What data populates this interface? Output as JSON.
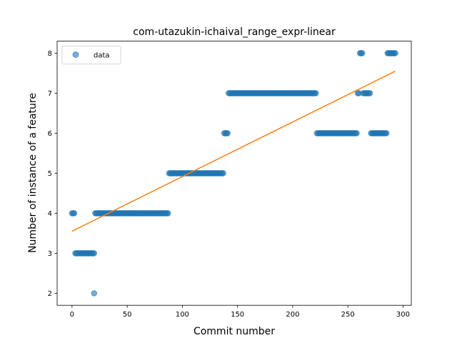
{
  "chart_data": {
    "type": "scatter",
    "title": "com-utazukin-ichaival_range_expr-linear",
    "xlabel": "Commit number",
    "ylabel": "Number of instance of a feature",
    "xlim": [
      -13.5,
      307.5
    ],
    "ylim": [
      1.7,
      8.3
    ],
    "xticks": [
      0,
      50,
      100,
      150,
      200,
      250,
      300
    ],
    "yticks": [
      2,
      3,
      4,
      5,
      6,
      7,
      8
    ],
    "grid": false,
    "legend": {
      "position": "top-left",
      "entries": [
        "data"
      ]
    },
    "colors": {
      "scatter": "#1f77b4",
      "fit": "#ff7f0e"
    },
    "segments": [
      {
        "x_start": 0,
        "x_end": 2,
        "y": 4
      },
      {
        "x_start": 3,
        "x_end": 20,
        "y": 3
      },
      {
        "x_start": 20,
        "x_end": 20,
        "y": 2
      },
      {
        "x_start": 21,
        "x_end": 87,
        "y": 4
      },
      {
        "x_start": 88,
        "x_end": 137,
        "y": 5
      },
      {
        "x_start": 138,
        "x_end": 141,
        "y": 6
      },
      {
        "x_start": 142,
        "x_end": 221,
        "y": 7
      },
      {
        "x_start": 222,
        "x_end": 258,
        "y": 6
      },
      {
        "x_start": 259,
        "x_end": 260,
        "y": 7
      },
      {
        "x_start": 261,
        "x_end": 263,
        "y": 8
      },
      {
        "x_start": 264,
        "x_end": 270,
        "y": 7
      },
      {
        "x_start": 271,
        "x_end": 285,
        "y": 6
      },
      {
        "x_start": 286,
        "x_end": 293,
        "y": 8
      }
    ],
    "series": [
      {
        "name": "data",
        "kind": "scatter"
      },
      {
        "kind": "line",
        "x": [
          0,
          293
        ],
        "y": [
          3.55,
          7.55
        ]
      }
    ]
  }
}
